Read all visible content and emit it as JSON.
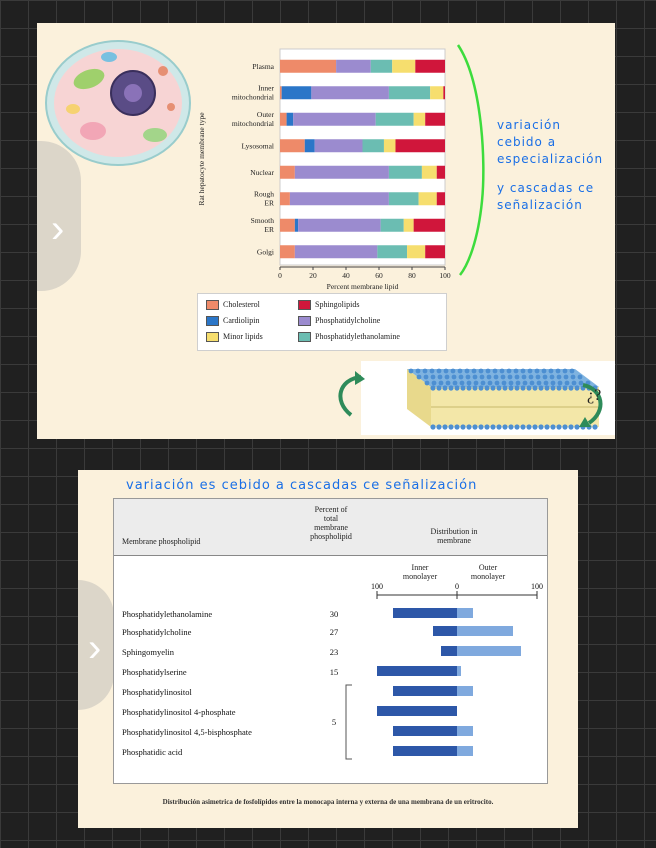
{
  "slide1": {
    "note_lines": [
      "variación",
      "cebido a",
      "especialización",
      "y cascadas ce",
      "señalización"
    ],
    "colors": {
      "cholesterol": "#ee8a69",
      "cardiolipin": "#2b76c8",
      "minor": "#f6de6e",
      "sphingolipids": "#d0163b",
      "pc": "#9b8bcf",
      "pe": "#6bbdb2"
    },
    "cell_image": "animal-cell-illustration",
    "membrane_image": "lipid-bilayer-illustration",
    "membrane_question": "¿?"
  },
  "slide2": {
    "heading": "variación es cebido a cascadas ce señalización",
    "col_phospholipid": "Membrane phospholipid",
    "col_percent": [
      "Percent of",
      "total",
      "membrane",
      "phospholipid"
    ],
    "col_distribution": [
      "Distribution in",
      "membrane"
    ],
    "inner_label": [
      "Inner",
      "monolayer"
    ],
    "outer_label": [
      "Outer",
      "monolayer"
    ],
    "axis_left": "100",
    "axis_zero": "0",
    "axis_right": "100",
    "group_percent": "5",
    "caption": "Distribución asimetrica de fosfolípidos entre la monocapa interna y externa de una membrana de un eritrocito."
  },
  "chart_data": [
    {
      "type": "bar",
      "stacked": true,
      "orientation": "horizontal",
      "categories": [
        "Plasma",
        "Inner mitochondrial",
        "Outer mitochondrial",
        "Lysosomal",
        "Nuclear",
        "Rough ER",
        "Smooth ER",
        "Golgi"
      ],
      "series": [
        {
          "name": "Cholesterol",
          "color": "#ee8a69",
          "values": [
            34,
            1,
            4,
            15,
            9,
            6,
            9,
            9
          ]
        },
        {
          "name": "Cardiolipin",
          "color": "#2b76c8",
          "values": [
            0,
            18,
            4,
            6,
            0,
            0,
            2,
            0
          ]
        },
        {
          "name": "Minor lipids",
          "color": "#f6de6e",
          "values": [
            0,
            0,
            0,
            0,
            0,
            0,
            0,
            0
          ]
        },
        {
          "name": "Sphingolipids",
          "color": "#d0163b",
          "values": [
            0,
            0,
            0,
            0,
            0,
            0,
            0,
            0
          ]
        },
        {
          "name": "Phosphatidylcholine",
          "color": "#9b8bcf",
          "values": [
            21,
            47,
            50,
            29,
            57,
            60,
            50,
            50
          ]
        },
        {
          "name": "Phosphatidylethanolamine",
          "color": "#6bbdb2",
          "values": [
            13,
            25,
            23,
            13,
            20,
            18,
            14,
            18
          ]
        },
        {
          "name": "Minor lipids (end)",
          "color": "#f6de6e",
          "values": [
            14,
            8,
            7,
            7,
            9,
            11,
            6,
            11
          ]
        },
        {
          "name": "Sphingolipids (end)",
          "color": "#d0163b",
          "values": [
            18,
            1,
            12,
            30,
            5,
            5,
            19,
            12
          ]
        }
      ],
      "xlabel": "Percent membrane lipid",
      "ylabel": "Rat hepatocyte membrane type",
      "xlim": [
        0,
        100
      ],
      "xticks": [
        "0",
        "20",
        "40",
        "60",
        "80",
        "100"
      ],
      "legend": [
        {
          "label": "Cholesterol",
          "color": "#ee8a69"
        },
        {
          "label": "Sphingolipids",
          "color": "#d0163b"
        },
        {
          "label": "Cardiolipin",
          "color": "#2b76c8"
        },
        {
          "label": "Phosphatidylcholine",
          "color": "#9b8bcf"
        },
        {
          "label": "Minor lipids",
          "color": "#f6de6e"
        },
        {
          "label": "Phosphatidylethanolamine",
          "color": "#6bbdb2"
        }
      ],
      "legend_position": "bottom"
    },
    {
      "type": "bar",
      "orientation": "horizontal",
      "diverging": true,
      "categories": [
        "Phosphatidylethanolamine",
        "Phosphatidylcholine",
        "Sphingomyelin",
        "Phosphatidylserine",
        "Phosphatidylinositol",
        "Phosphatidylinositol 4-phosphate",
        "Phosphatidylinositol 4,5-bisphosphate",
        "Phosphatidic acid"
      ],
      "percent_total": [
        "30",
        "27",
        "23",
        "15",
        "",
        "",
        "",
        ""
      ],
      "series": [
        {
          "name": "Inner monolayer",
          "color": "#2d57a8",
          "values": [
            80,
            30,
            20,
            100,
            80,
            100,
            80,
            80
          ]
        },
        {
          "name": "Outer monolayer",
          "color": "#7fa9de",
          "values": [
            20,
            70,
            80,
            5,
            20,
            0,
            20,
            20
          ]
        }
      ],
      "xlim": [
        -100,
        100
      ]
    }
  ]
}
